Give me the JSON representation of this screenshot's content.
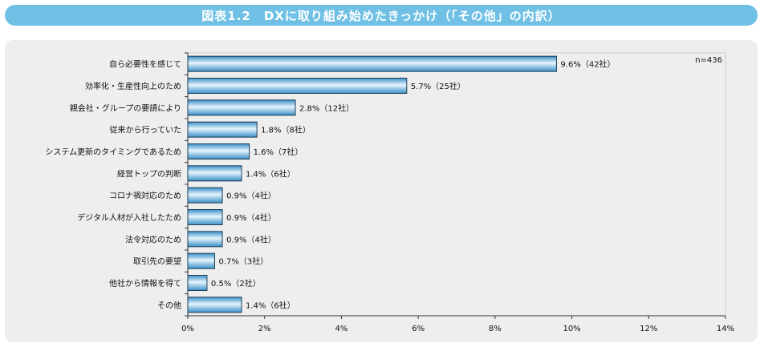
{
  "header": {
    "title": "図表1.2　DXに取り組み始めたきっかけ（「その他」の内訳）"
  },
  "chart_data": {
    "type": "bar",
    "orientation": "horizontal",
    "title": "図表1.2　DXに取り組み始めたきっかけ（「その他」の内訳）",
    "note": "n=436",
    "categories": [
      "自ら必要性を感じて",
      "効率化・生産性向上のため",
      "親会社・グループの要請により",
      "従来から行っていた",
      "システム更新のタイミングであるため",
      "経営トップの判断",
      "コロナ禍対応のため",
      "デジタル人材が入社したため",
      "法令対応のため",
      "取引先の要望",
      "他社から情報を得て",
      "その他"
    ],
    "values": [
      9.6,
      5.7,
      2.8,
      1.8,
      1.6,
      1.4,
      0.9,
      0.9,
      0.9,
      0.7,
      0.5,
      1.4
    ],
    "value_labels": [
      "9.6%（42社）",
      "5.7%（25社）",
      "2.8%（12社）",
      "1.8%（8社）",
      "1.6%（7社）",
      "1.4%（6社）",
      "0.9%（4社）",
      "0.9%（4社）",
      "0.9%（4社）",
      "0.7%（3社）",
      "0.5%（2社）",
      "1.4%（6社）"
    ],
    "xlim": [
      0,
      14
    ],
    "xticks": [
      "0%",
      "2%",
      "4%",
      "6%",
      "8%",
      "10%",
      "12%",
      "14%"
    ],
    "grid": false,
    "colors": {
      "bar_dark": "#3a8fc8",
      "bar_light": "#e6f5fc",
      "bar_stroke": "#1d3e57",
      "title_bg": "#6fc0e4",
      "panel_bg": "#eeeeee"
    }
  }
}
